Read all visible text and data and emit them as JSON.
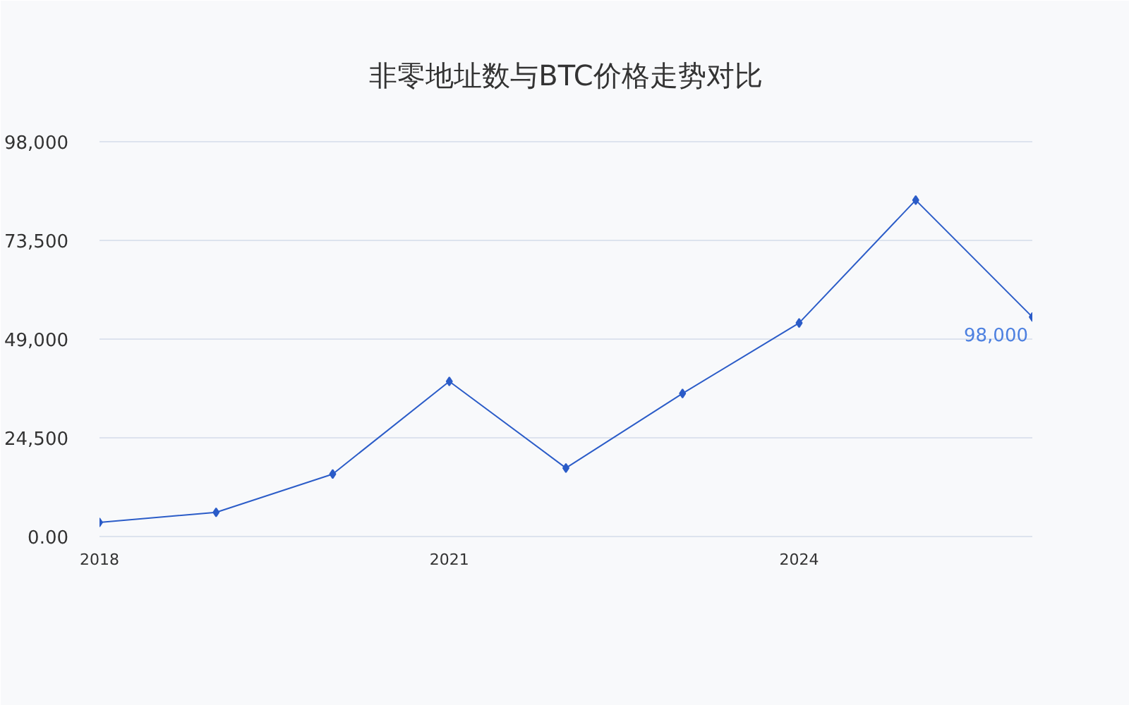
{
  "chart_data": {
    "type": "line",
    "title": "非零地址数与BTC价格走势对比",
    "x": [
      2018,
      2019,
      2020,
      2021,
      2022,
      2023,
      2024,
      2025,
      2026
    ],
    "series": [
      {
        "color": "#2b5cc8",
        "values": [
          3500,
          6000,
          15500,
          38500,
          17000,
          35500,
          53000,
          83500,
          54500
        ]
      }
    ],
    "xlim": [
      2018,
      2026
    ],
    "xticks": [
      2018,
      2021,
      2024
    ],
    "ylim": [
      0,
      98000
    ],
    "yticks": [
      {
        "value": 0,
        "label": "0.00"
      },
      {
        "value": 24500,
        "label": "24,500"
      },
      {
        "value": 49000,
        "label": "49,000"
      },
      {
        "value": 73500,
        "label": "73,500"
      },
      {
        "value": 98000,
        "label": "98,000"
      }
    ],
    "grid": "y",
    "marker": "diamond",
    "line_style": "solid",
    "annotations": [
      {
        "text": "98,000",
        "x": 2026,
        "y": 54500
      }
    ]
  }
}
